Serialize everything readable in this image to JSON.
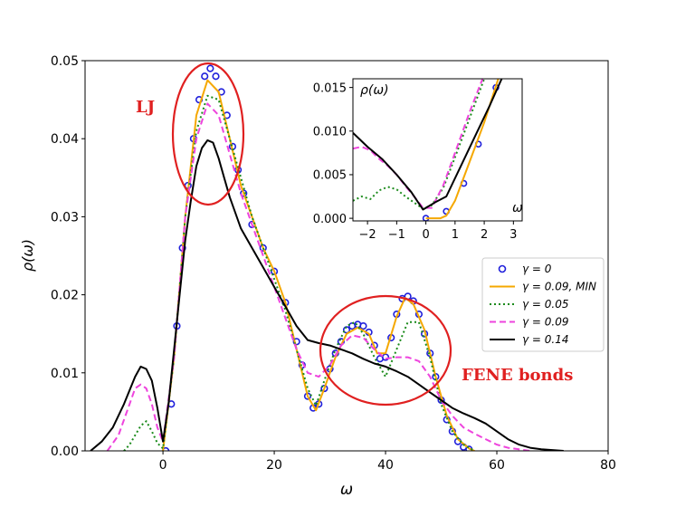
{
  "chart_data": {
    "type": "line",
    "xlabel": "ω",
    "ylabel": "ρ(ω)",
    "xlim": [
      -14,
      80
    ],
    "ylim": [
      0,
      0.05
    ],
    "xticks": [
      "0",
      "20",
      "40",
      "60",
      "80"
    ],
    "yticks": [
      "0.00",
      "0.01",
      "0.02",
      "0.03",
      "0.04",
      "0.05"
    ],
    "legend_position": "right",
    "colors": {
      "g0": "#1f1fdb",
      "gmin": "#f5a800",
      "g005": "#1a8a1a",
      "g009": "#ee44dd",
      "g014": "#000000",
      "circle": "#e02020"
    },
    "series": [
      {
        "name": "γ = 0",
        "style": "circles",
        "points": [
          [
            0.5,
            0.0
          ],
          [
            1.5,
            0.006
          ],
          [
            2.5,
            0.016
          ],
          [
            3.5,
            0.026
          ],
          [
            4.5,
            0.034
          ],
          [
            5.5,
            0.04
          ],
          [
            6.5,
            0.045
          ],
          [
            7.5,
            0.048
          ],
          [
            8.5,
            0.049
          ],
          [
            9.5,
            0.048
          ],
          [
            10.5,
            0.046
          ],
          [
            11.5,
            0.043
          ],
          [
            12.5,
            0.039
          ],
          [
            13.5,
            0.036
          ],
          [
            14.5,
            0.033
          ],
          [
            16,
            0.029
          ],
          [
            18,
            0.026
          ],
          [
            20,
            0.023
          ],
          [
            22,
            0.019
          ],
          [
            24,
            0.014
          ],
          [
            25,
            0.011
          ],
          [
            26,
            0.007
          ],
          [
            27,
            0.0055
          ],
          [
            28,
            0.006
          ],
          [
            29,
            0.008
          ],
          [
            30,
            0.0105
          ],
          [
            31,
            0.0125
          ],
          [
            32,
            0.014
          ],
          [
            33,
            0.0155
          ],
          [
            34,
            0.016
          ],
          [
            35,
            0.0162
          ],
          [
            36,
            0.016
          ],
          [
            37,
            0.0152
          ],
          [
            38,
            0.0135
          ],
          [
            39,
            0.0118
          ],
          [
            40,
            0.012
          ],
          [
            41,
            0.0145
          ],
          [
            42,
            0.0175
          ],
          [
            43,
            0.0195
          ],
          [
            44,
            0.0198
          ],
          [
            45,
            0.0192
          ],
          [
            46,
            0.0175
          ],
          [
            47,
            0.015
          ],
          [
            48,
            0.0125
          ],
          [
            49,
            0.0095
          ],
          [
            50,
            0.0065
          ],
          [
            51,
            0.004
          ],
          [
            52,
            0.0025
          ],
          [
            53,
            0.0012
          ],
          [
            54,
            0.0005
          ],
          [
            55,
            0.0002
          ]
        ]
      },
      {
        "name": "γ = 0.09, MIN",
        "style": "solid",
        "points": [
          [
            0,
            0.0
          ],
          [
            2,
            0.012
          ],
          [
            4,
            0.03
          ],
          [
            6,
            0.043
          ],
          [
            8,
            0.0475
          ],
          [
            10,
            0.046
          ],
          [
            12,
            0.04
          ],
          [
            14,
            0.034
          ],
          [
            16,
            0.03
          ],
          [
            18,
            0.026
          ],
          [
            20,
            0.023
          ],
          [
            22,
            0.019
          ],
          [
            24,
            0.013
          ],
          [
            26,
            0.007
          ],
          [
            27.5,
            0.0052
          ],
          [
            29,
            0.008
          ],
          [
            31,
            0.012
          ],
          [
            33,
            0.015
          ],
          [
            35,
            0.0158
          ],
          [
            37,
            0.015
          ],
          [
            38.5,
            0.0125
          ],
          [
            40,
            0.0125
          ],
          [
            42,
            0.0172
          ],
          [
            43.5,
            0.0196
          ],
          [
            45,
            0.0188
          ],
          [
            47,
            0.0155
          ],
          [
            49,
            0.0095
          ],
          [
            51,
            0.0045
          ],
          [
            53,
            0.0015
          ],
          [
            55,
            0.0003
          ],
          [
            56,
            0.0
          ]
        ]
      },
      {
        "name": "γ = 0.05",
        "style": "dotted",
        "points": [
          [
            -7,
            0.0
          ],
          [
            -6,
            0.0008
          ],
          [
            -5,
            0.002
          ],
          [
            -4,
            0.0032
          ],
          [
            -3,
            0.0038
          ],
          [
            -2,
            0.0025
          ],
          [
            -1,
            0.001
          ],
          [
            0,
            0.0003
          ],
          [
            2,
            0.012
          ],
          [
            4,
            0.03
          ],
          [
            6,
            0.041
          ],
          [
            8,
            0.0455
          ],
          [
            10,
            0.045
          ],
          [
            12,
            0.04
          ],
          [
            14,
            0.035
          ],
          [
            16,
            0.03
          ],
          [
            18,
            0.026
          ],
          [
            20,
            0.022
          ],
          [
            22,
            0.018
          ],
          [
            24,
            0.013
          ],
          [
            26,
            0.008
          ],
          [
            27.5,
            0.0058
          ],
          [
            29,
            0.009
          ],
          [
            31,
            0.013
          ],
          [
            33,
            0.016
          ],
          [
            34.5,
            0.0165
          ],
          [
            36,
            0.015
          ],
          [
            38,
            0.012
          ],
          [
            40,
            0.0095
          ],
          [
            42,
            0.013
          ],
          [
            44,
            0.0165
          ],
          [
            46,
            0.0165
          ],
          [
            48,
            0.012
          ],
          [
            50,
            0.006
          ],
          [
            52,
            0.0025
          ],
          [
            54,
            0.0008
          ],
          [
            56,
            0.0
          ]
        ]
      },
      {
        "name": "γ = 0.09",
        "style": "dashed",
        "points": [
          [
            -10,
            0.0
          ],
          [
            -8,
            0.002
          ],
          [
            -6,
            0.006
          ],
          [
            -5,
            0.008
          ],
          [
            -4,
            0.0085
          ],
          [
            -3,
            0.008
          ],
          [
            -2,
            0.006
          ],
          [
            -1,
            0.003
          ],
          [
            0,
            0.0012
          ],
          [
            2,
            0.012
          ],
          [
            4,
            0.03
          ],
          [
            6,
            0.04
          ],
          [
            8,
            0.0445
          ],
          [
            10,
            0.043
          ],
          [
            12,
            0.038
          ],
          [
            14,
            0.033
          ],
          [
            16,
            0.029
          ],
          [
            18,
            0.025
          ],
          [
            20,
            0.021
          ],
          [
            22,
            0.017
          ],
          [
            24,
            0.013
          ],
          [
            26,
            0.01
          ],
          [
            28,
            0.0095
          ],
          [
            30,
            0.011
          ],
          [
            32,
            0.0135
          ],
          [
            34,
            0.0148
          ],
          [
            36,
            0.0145
          ],
          [
            38,
            0.013
          ],
          [
            40,
            0.0118
          ],
          [
            42,
            0.012
          ],
          [
            44,
            0.012
          ],
          [
            46,
            0.0115
          ],
          [
            48,
            0.0095
          ],
          [
            50,
            0.0065
          ],
          [
            52,
            0.0045
          ],
          [
            54,
            0.003
          ],
          [
            56,
            0.0022
          ],
          [
            58,
            0.0015
          ],
          [
            60,
            0.0008
          ],
          [
            62,
            0.0004
          ],
          [
            64,
            0.0002
          ],
          [
            66,
            0.0
          ]
        ]
      },
      {
        "name": "γ = 0.14",
        "style": "solid",
        "points": [
          [
            -13,
            0.0
          ],
          [
            -11,
            0.0012
          ],
          [
            -9,
            0.003
          ],
          [
            -7,
            0.006
          ],
          [
            -5,
            0.0095
          ],
          [
            -4,
            0.0108
          ],
          [
            -3,
            0.0105
          ],
          [
            -2,
            0.009
          ],
          [
            -1,
            0.0055
          ],
          [
            0,
            0.0012
          ],
          [
            1,
            0.006
          ],
          [
            2,
            0.013
          ],
          [
            3,
            0.02
          ],
          [
            4,
            0.027
          ],
          [
            5,
            0.032
          ],
          [
            6,
            0.0365
          ],
          [
            7,
            0.0388
          ],
          [
            8,
            0.0398
          ],
          [
            9,
            0.0395
          ],
          [
            10,
            0.0375
          ],
          [
            11,
            0.035
          ],
          [
            12,
            0.0325
          ],
          [
            14,
            0.0285
          ],
          [
            16,
            0.026
          ],
          [
            18,
            0.0235
          ],
          [
            20,
            0.021
          ],
          [
            22,
            0.0185
          ],
          [
            24,
            0.016
          ],
          [
            26,
            0.0142
          ],
          [
            28,
            0.0138
          ],
          [
            30,
            0.0135
          ],
          [
            32,
            0.013
          ],
          [
            34,
            0.0125
          ],
          [
            36,
            0.0118
          ],
          [
            38,
            0.0112
          ],
          [
            40,
            0.0108
          ],
          [
            42,
            0.0102
          ],
          [
            44,
            0.0095
          ],
          [
            46,
            0.0085
          ],
          [
            48,
            0.0075
          ],
          [
            50,
            0.0065
          ],
          [
            52,
            0.0055
          ],
          [
            54,
            0.0048
          ],
          [
            56,
            0.0042
          ],
          [
            58,
            0.0035
          ],
          [
            60,
            0.0025
          ],
          [
            62,
            0.0015
          ],
          [
            64,
            0.0008
          ],
          [
            66,
            0.0004
          ],
          [
            68,
            0.0002
          ],
          [
            70,
            0.0001
          ],
          [
            72,
            0.0
          ]
        ]
      }
    ],
    "annotations": {
      "lj": "LJ",
      "fene": "FENE bonds"
    },
    "inset": {
      "xlabel": "ω",
      "ylabel": "ρ(ω)",
      "xlim": [
        -2.5,
        3.3
      ],
      "ylim": [
        -0.0003,
        0.016
      ],
      "xticks": [
        "−2",
        "−1",
        "0",
        "1",
        "2",
        "3"
      ],
      "yticks": [
        "0.000",
        "0.005",
        "0.010",
        "0.015"
      ],
      "series": [
        {
          "name": "γ = 0",
          "style": "circles",
          "points": [
            [
              0,
              0.0
            ],
            [
              0.7,
              0.0008
            ],
            [
              1.3,
              0.004
            ],
            [
              1.8,
              0.0085
            ],
            [
              2.4,
              0.015
            ]
          ]
        },
        {
          "name": "γ = 0.09, MIN",
          "style": "solid",
          "points": [
            [
              0,
              0.0
            ],
            [
              0.2,
              0.0
            ],
            [
              0.5,
              0.0
            ],
            [
              0.7,
              0.0003
            ],
            [
              1.0,
              0.002
            ],
            [
              1.5,
              0.0065
            ],
            [
              2.0,
              0.011
            ],
            [
              2.5,
              0.0162
            ]
          ]
        },
        {
          "name": "γ = 0.05",
          "style": "dotted",
          "points": [
            [
              -2.5,
              0.002
            ],
            [
              -2.2,
              0.0025
            ],
            [
              -1.9,
              0.0022
            ],
            [
              -1.6,
              0.0032
            ],
            [
              -1.3,
              0.0036
            ],
            [
              -1.0,
              0.0033
            ],
            [
              -0.7,
              0.0025
            ],
            [
              -0.4,
              0.0018
            ],
            [
              -0.1,
              0.0011
            ],
            [
              0.2,
              0.0015
            ],
            [
              0.6,
              0.0035
            ],
            [
              1.0,
              0.007
            ],
            [
              1.5,
              0.0115
            ],
            [
              2.0,
              0.016
            ]
          ]
        },
        {
          "name": "γ = 0.09",
          "style": "dashed",
          "points": [
            [
              -2.5,
              0.008
            ],
            [
              -2.2,
              0.0082
            ],
            [
              -1.9,
              0.0078
            ],
            [
              -1.6,
              0.0068
            ],
            [
              -1.3,
              0.006
            ],
            [
              -1.0,
              0.005
            ],
            [
              -0.7,
              0.0037
            ],
            [
              -0.4,
              0.0025
            ],
            [
              -0.1,
              0.0012
            ],
            [
              0.2,
              0.0012
            ],
            [
              0.6,
              0.0038
            ],
            [
              1.0,
              0.0075
            ],
            [
              1.5,
              0.0122
            ],
            [
              2.0,
              0.0165
            ]
          ]
        },
        {
          "name": "γ = 0.14",
          "style": "solid",
          "points": [
            [
              -2.5,
              0.0098
            ],
            [
              -2.0,
              0.0082
            ],
            [
              -1.5,
              0.0068
            ],
            [
              -1.0,
              0.005
            ],
            [
              -0.5,
              0.003
            ],
            [
              -0.1,
              0.001
            ],
            [
              0.3,
              0.0018
            ],
            [
              0.7,
              0.0025
            ],
            [
              1.2,
              0.006
            ],
            [
              1.7,
              0.0095
            ],
            [
              2.2,
              0.013
            ],
            [
              2.6,
              0.016
            ]
          ]
        }
      ]
    }
  }
}
